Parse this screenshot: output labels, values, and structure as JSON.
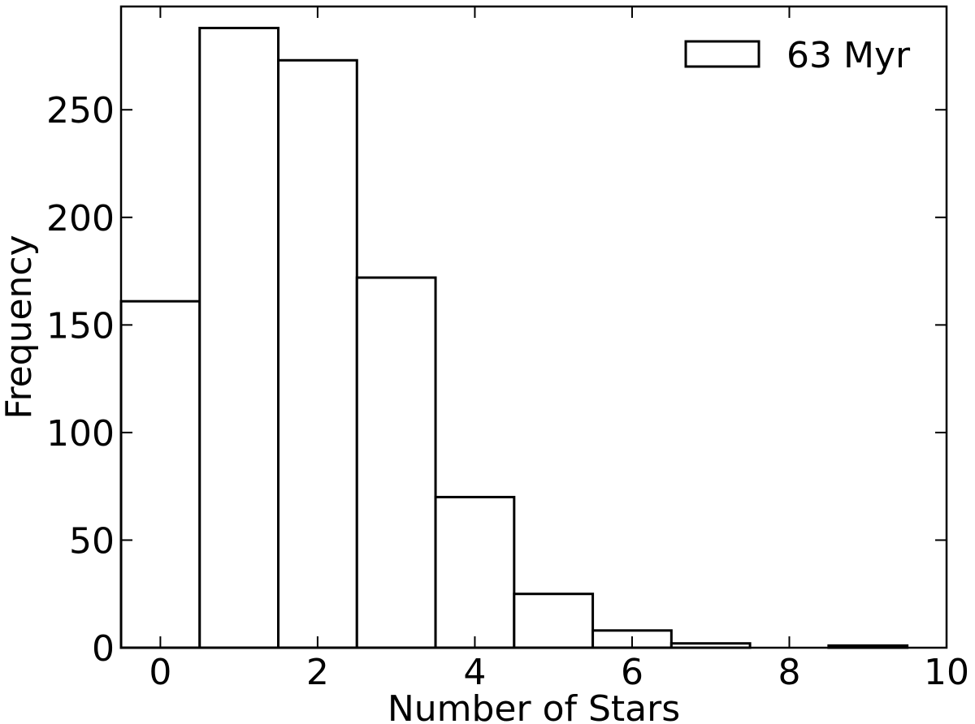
{
  "chart_data": {
    "type": "bar",
    "histogram": true,
    "x": [
      0,
      1,
      2,
      3,
      4,
      5,
      6,
      7,
      8,
      9
    ],
    "bin_edges": [
      -0.5,
      0.5,
      1.5,
      2.5,
      3.5,
      4.5,
      5.5,
      6.5,
      7.5,
      8.5,
      9.5
    ],
    "series": [
      {
        "name": "63 Myr",
        "values": [
          161,
          288,
          273,
          172,
          70,
          25,
          8,
          2,
          0,
          1
        ]
      }
    ],
    "xlabel": "Number of Stars",
    "ylabel": "Frequency",
    "xlim": [
      -0.5,
      10
    ],
    "ylim": [
      0,
      298
    ],
    "xticks": [
      0,
      2,
      4,
      6,
      8,
      10
    ],
    "yticks": [
      0,
      50,
      100,
      150,
      200,
      250
    ],
    "xtick_labels": [
      "0",
      "2",
      "4",
      "6",
      "8",
      "10"
    ],
    "ytick_labels": [
      "0",
      "50",
      "100",
      "150",
      "200",
      "250"
    ],
    "grid": false,
    "legend_position": "top-right",
    "bar_fill": "#ffffff",
    "bar_edge": "#000000"
  }
}
